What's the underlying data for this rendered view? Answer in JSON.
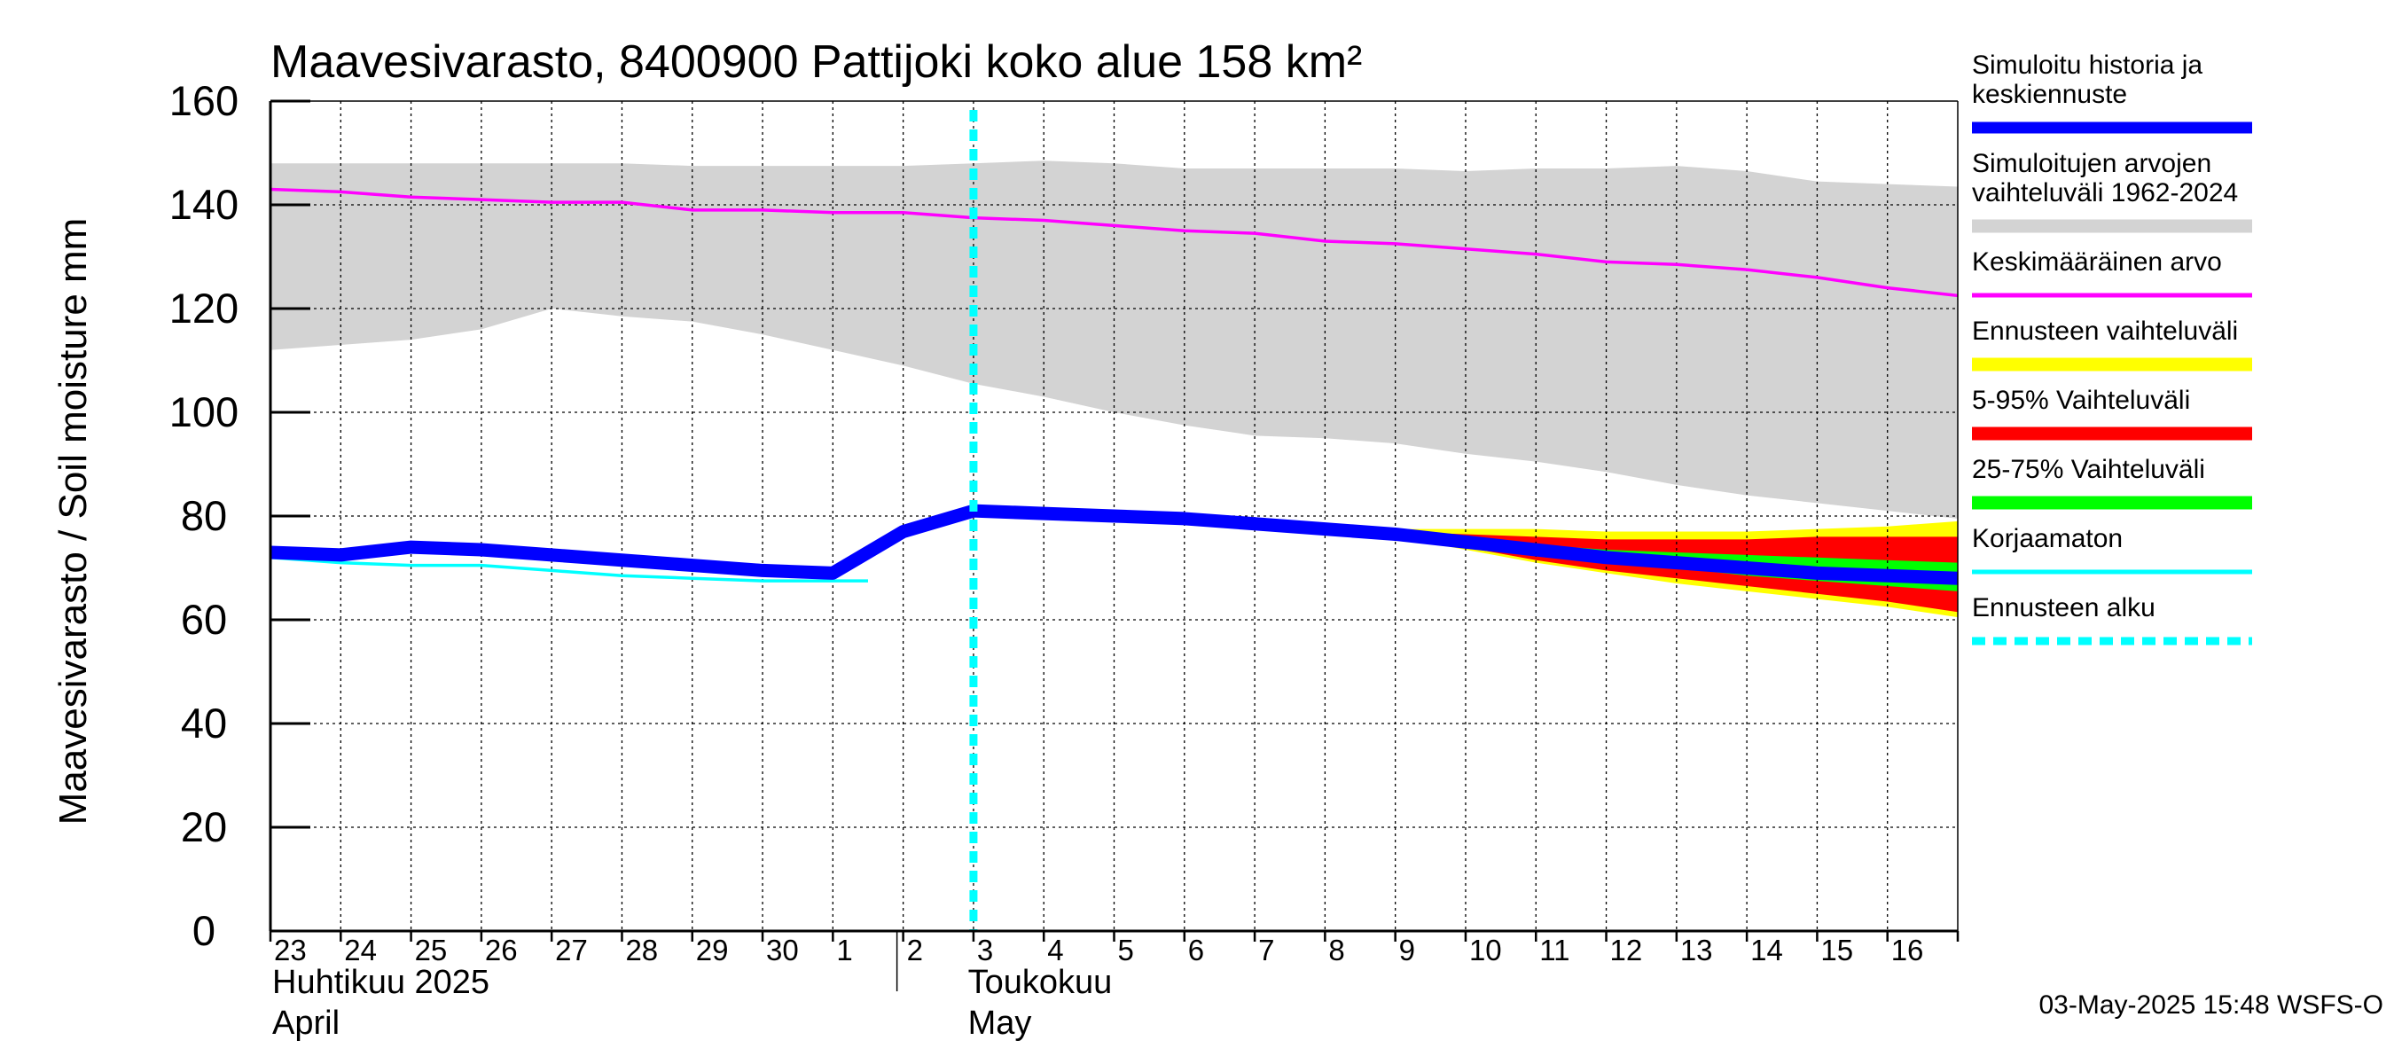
{
  "chart_data": {
    "type": "area",
    "title": "Maavesivarasto, 8400900 Pattijoki koko alue 158 km²",
    "ylabel": "Maavesivarasto / Soil moisture   mm",
    "ylim": [
      0,
      160
    ],
    "yticks": [
      0,
      20,
      40,
      60,
      80,
      100,
      120,
      140,
      160
    ],
    "xlim": [
      0,
      24
    ],
    "day_labels": [
      "23",
      "24",
      "25",
      "26",
      "27",
      "28",
      "29",
      "30",
      "1",
      "2",
      "3",
      "4",
      "5",
      "6",
      "7",
      "8",
      "9",
      "10",
      "11",
      "12",
      "13",
      "14",
      "15",
      "16"
    ],
    "month_labels": [
      {
        "line1": "Huhtikuu  2025",
        "line2": "April",
        "at_day": 0
      },
      {
        "line1": "Toukokuu",
        "line2": "May",
        "at_day": 9
      }
    ],
    "forecast_start_day": 10,
    "timestamp": "03-May-2025 15:48 WSFS-O",
    "series": {
      "hist_range": {
        "name": "Simuloitujen arvojen vaihteluväli 1962-2024",
        "color": "#d3d3d3",
        "x": [
          0,
          1,
          2,
          3,
          4,
          5,
          6,
          7,
          8,
          9,
          10,
          11,
          12,
          13,
          14,
          15,
          16,
          17,
          18,
          19,
          20,
          21,
          22,
          23,
          24
        ],
        "upper": [
          148,
          148,
          148,
          148,
          148,
          148,
          147.5,
          147.5,
          147.5,
          147.5,
          148,
          148.5,
          148,
          147,
          147,
          147,
          147,
          146.5,
          147,
          147,
          147.5,
          146.5,
          144.5,
          144,
          143.5
        ],
        "lower": [
          112,
          113,
          114,
          116,
          120,
          118.5,
          117.5,
          115,
          112,
          109,
          105.5,
          103,
          100,
          97.5,
          95.5,
          95,
          94,
          92,
          90.5,
          88.5,
          86,
          84,
          82.5,
          81,
          79.5
        ]
      },
      "mean": {
        "name": "Keskimääräinen arvo",
        "color": "#ff00ff",
        "x": [
          0,
          1,
          2,
          3,
          4,
          5,
          6,
          7,
          8,
          9,
          10,
          11,
          12,
          13,
          14,
          15,
          16,
          17,
          18,
          19,
          20,
          21,
          22,
          23,
          24
        ],
        "values": [
          143,
          142.5,
          141.5,
          141,
          140.5,
          140.5,
          139,
          139,
          138.5,
          138.5,
          137.5,
          137,
          136,
          135,
          134.5,
          133,
          132.5,
          131.5,
          130.5,
          129,
          128.5,
          127.5,
          126,
          124,
          122.5
        ]
      },
      "uncorrected": {
        "name": "Korjaamaton",
        "color": "#00ffff",
        "x": [
          0,
          1,
          2,
          3,
          4,
          5,
          6,
          7,
          8,
          8.5
        ],
        "values": [
          72,
          71,
          70.5,
          70.5,
          69.5,
          68.5,
          68,
          67.5,
          67.5,
          67.5
        ]
      },
      "sim_history": {
        "name": "Simuloitu historia ja keskiennuste",
        "color": "#0000ff",
        "x": [
          0,
          1,
          2,
          3,
          4,
          5,
          6,
          7,
          8,
          9,
          10,
          11,
          12,
          13,
          14,
          15,
          16,
          17,
          18,
          19,
          20,
          21,
          22,
          23,
          24
        ],
        "values": [
          73,
          72.5,
          74,
          73.5,
          72.5,
          71.5,
          70.5,
          69.5,
          69,
          77,
          81,
          80.5,
          80,
          79.5,
          78.5,
          77.5,
          76.5,
          75,
          73.5,
          72,
          71,
          70,
          69,
          68.5,
          68
        ]
      },
      "forecast_range": {
        "name": "Ennusteen vaihteluväli",
        "color": "#ffff00",
        "x": [
          15,
          16,
          17,
          18,
          19,
          20,
          21,
          22,
          23,
          24
        ],
        "upper": [
          77.5,
          77.5,
          77.5,
          77.5,
          77,
          77,
          77,
          77.5,
          78,
          79
        ],
        "lower": [
          77.5,
          76,
          73.5,
          71,
          69,
          67,
          65.5,
          64,
          62.5,
          60.5
        ]
      },
      "p5_95": {
        "name": "5-95% Vaihteluväli",
        "color": "#ff0000",
        "x": [
          15,
          16,
          17,
          18,
          19,
          20,
          21,
          22,
          23,
          24
        ],
        "upper": [
          77.5,
          77,
          76.5,
          76,
          75.5,
          75.5,
          75.5,
          76,
          76,
          76
        ],
        "lower": [
          77.5,
          76,
          74,
          71.5,
          69.5,
          68,
          66.5,
          65,
          63.5,
          61.5
        ]
      },
      "p25_75": {
        "name": "25-75% Vaihteluväli",
        "color": "#00ff00",
        "x": [
          15,
          16,
          17,
          18,
          19,
          20,
          21,
          22,
          23,
          24
        ],
        "upper": [
          77.5,
          76.5,
          75.5,
          74.5,
          73.5,
          73,
          72.5,
          72,
          71.5,
          71
        ],
        "lower": [
          77.5,
          76,
          74.5,
          72.5,
          71,
          70,
          68.5,
          67.5,
          66.5,
          65.5
        ]
      }
    },
    "legend": [
      {
        "key": "sim_history",
        "lines": [
          "Simuloitu historia ja",
          "keskiennuste"
        ],
        "color": "#0000ff",
        "style": "thick"
      },
      {
        "key": "hist_range",
        "lines": [
          "Simuloitujen arvojen",
          "vaihteluväli 1962-2024"
        ],
        "color": "#d3d3d3",
        "style": "band"
      },
      {
        "key": "mean",
        "lines": [
          "Keskimääräinen arvo"
        ],
        "color": "#ff00ff",
        "style": "thin"
      },
      {
        "key": "forecast_range",
        "lines": [
          "Ennusteen vaihteluväli"
        ],
        "color": "#ffff00",
        "style": "band"
      },
      {
        "key": "p5_95",
        "lines": [
          "5-95% Vaihteluväli"
        ],
        "color": "#ff0000",
        "style": "band"
      },
      {
        "key": "p25_75",
        "lines": [
          "25-75% Vaihteluväli"
        ],
        "color": "#00ff00",
        "style": "band"
      },
      {
        "key": "uncorrected",
        "lines": [
          "Korjaamaton"
        ],
        "color": "#00ffff",
        "style": "thin"
      },
      {
        "key": "forecast_start",
        "lines": [
          "Ennusteen alku"
        ],
        "color": "#00ffff",
        "style": "dashed"
      }
    ]
  }
}
